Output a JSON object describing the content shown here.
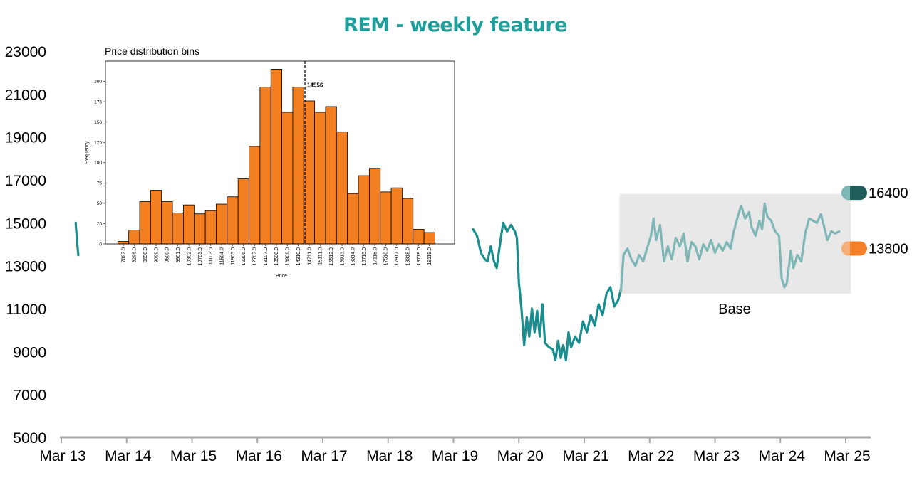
{
  "title": "REM - weekly feature",
  "colors": {
    "title": "#1f9e9a",
    "price_line": "#1a8e8e",
    "base_line": "#7fb6b6",
    "base_box": "#e8e8e8",
    "hist_bar": "#f47f20",
    "badge_high": "#1e5e5a",
    "badge_low": "#f4802a"
  },
  "chart_data": {
    "type": "line",
    "title": "REM - weekly feature",
    "x_ticks": [
      "Mar 13",
      "Mar 14",
      "Mar 15",
      "Mar 16",
      "Mar 17",
      "Mar 18",
      "Mar 19",
      "Mar 20",
      "Mar 21",
      "Mar 22",
      "Mar 23",
      "Mar 24",
      "Mar 25"
    ],
    "y_ticks": [
      5000,
      7000,
      9000,
      11000,
      13000,
      15000,
      17000,
      19000,
      21000,
      23000
    ],
    "ylim": [
      5000,
      23000
    ],
    "xlim": [
      13.0,
      25.0
    ],
    "series": [
      {
        "name": "price-segment-1",
        "points": [
          [
            13.22,
            15000
          ],
          [
            13.24,
            14200
          ],
          [
            13.26,
            13500
          ]
        ]
      },
      {
        "name": "price-main",
        "points": [
          [
            19.3,
            14700
          ],
          [
            19.36,
            14400
          ],
          [
            19.42,
            13600
          ],
          [
            19.48,
            13300
          ],
          [
            19.52,
            13200
          ],
          [
            19.57,
            13900
          ],
          [
            19.62,
            13200
          ],
          [
            19.66,
            12900
          ],
          [
            19.72,
            14200
          ],
          [
            19.76,
            15000
          ],
          [
            19.82,
            14600
          ],
          [
            19.88,
            14900
          ],
          [
            19.94,
            14600
          ],
          [
            19.97,
            14300
          ],
          [
            20.0,
            12200
          ],
          [
            20.04,
            11000
          ],
          [
            20.08,
            9300
          ],
          [
            20.12,
            10600
          ],
          [
            20.16,
            9700
          ],
          [
            20.2,
            11000
          ],
          [
            20.24,
            9900
          ],
          [
            20.28,
            10900
          ],
          [
            20.32,
            9700
          ],
          [
            20.36,
            11200
          ],
          [
            20.4,
            9400
          ],
          [
            20.46,
            9200
          ],
          [
            20.52,
            9100
          ],
          [
            20.56,
            8600
          ],
          [
            20.6,
            9500
          ],
          [
            20.64,
            8700
          ],
          [
            20.68,
            9300
          ],
          [
            20.72,
            8600
          ],
          [
            20.76,
            9900
          ],
          [
            20.8,
            9200
          ],
          [
            20.86,
            9700
          ],
          [
            20.92,
            9400
          ],
          [
            20.98,
            10400
          ],
          [
            21.04,
            9900
          ],
          [
            21.1,
            10700
          ],
          [
            21.16,
            10200
          ],
          [
            21.22,
            11200
          ],
          [
            21.28,
            10700
          ],
          [
            21.34,
            11700
          ],
          [
            21.4,
            12000
          ],
          [
            21.46,
            11100
          ],
          [
            21.52,
            11400
          ],
          [
            21.56,
            11900
          ]
        ]
      },
      {
        "name": "base-line",
        "points": [
          [
            21.56,
            11800
          ],
          [
            21.6,
            13500
          ],
          [
            21.66,
            13800
          ],
          [
            21.72,
            13300
          ],
          [
            21.78,
            13000
          ],
          [
            21.84,
            13500
          ],
          [
            21.9,
            13200
          ],
          [
            21.96,
            13800
          ],
          [
            22.02,
            14400
          ],
          [
            22.06,
            15200
          ],
          [
            22.1,
            14200
          ],
          [
            22.16,
            14900
          ],
          [
            22.22,
            13200
          ],
          [
            22.28,
            13900
          ],
          [
            22.34,
            13300
          ],
          [
            22.4,
            14300
          ],
          [
            22.46,
            13900
          ],
          [
            22.52,
            14500
          ],
          [
            22.58,
            13200
          ],
          [
            22.64,
            14100
          ],
          [
            22.7,
            13900
          ],
          [
            22.76,
            13300
          ],
          [
            22.82,
            14000
          ],
          [
            22.88,
            13700
          ],
          [
            22.94,
            14200
          ],
          [
            23.0,
            13600
          ],
          [
            23.06,
            14000
          ],
          [
            23.12,
            13700
          ],
          [
            23.18,
            14100
          ],
          [
            23.24,
            13800
          ],
          [
            23.28,
            14500
          ],
          [
            23.34,
            15200
          ],
          [
            23.4,
            15800
          ],
          [
            23.46,
            15200
          ],
          [
            23.52,
            15500
          ],
          [
            23.56,
            14800
          ],
          [
            23.62,
            14400
          ],
          [
            23.68,
            15100
          ],
          [
            23.72,
            14700
          ],
          [
            23.76,
            15900
          ],
          [
            23.8,
            15300
          ],
          [
            23.86,
            15100
          ],
          [
            23.92,
            14600
          ],
          [
            23.98,
            14400
          ],
          [
            24.02,
            12400
          ],
          [
            24.06,
            12000
          ],
          [
            24.1,
            12200
          ],
          [
            24.16,
            13700
          ],
          [
            24.2,
            12900
          ],
          [
            24.26,
            13500
          ],
          [
            24.32,
            13200
          ],
          [
            24.38,
            14500
          ],
          [
            24.44,
            15200
          ],
          [
            24.5,
            15100
          ],
          [
            24.56,
            15000
          ],
          [
            24.62,
            15400
          ],
          [
            24.68,
            14700
          ],
          [
            24.72,
            14200
          ],
          [
            24.78,
            14600
          ],
          [
            24.84,
            14500
          ],
          [
            24.9,
            14600
          ]
        ]
      }
    ],
    "base_region": {
      "label": "Base",
      "x_range": [
        21.54,
        25.08
      ],
      "y_range": [
        11700,
        16350
      ]
    },
    "badges": [
      {
        "name": "high",
        "value": 16400
      },
      {
        "name": "low",
        "value": 13800
      }
    ],
    "badge_labels": [
      "16400",
      "13800"
    ],
    "inset_histogram": {
      "type": "bar",
      "title": "Price distribution bins",
      "xlabel": "Price",
      "ylabel": "Frequency",
      "categories": [
        "7897.0",
        "8298.0",
        "8698.0",
        "9099.0",
        "9500.0",
        "9901.0",
        "10302.0",
        "10703.0",
        "11103.0",
        "11504.0",
        "11905.0",
        "12306.0",
        "12707.0",
        "13107.0",
        "13508.0",
        "13909.0",
        "14310.0",
        "14711.0",
        "15111.0",
        "15512.0",
        "15913.0",
        "16314.0",
        "16715.0",
        "17115.0",
        "17516.0",
        "17917.0",
        "18318.0",
        "18719.0",
        "19119.0"
      ],
      "values": [
        3,
        17,
        52,
        66,
        52,
        38,
        48,
        37,
        41,
        49,
        58,
        80,
        120,
        193,
        215,
        162,
        193,
        176,
        162,
        169,
        138,
        62,
        84,
        93,
        64,
        69,
        56,
        18,
        14
      ],
      "y_ticks": [
        0,
        25,
        50,
        75,
        100,
        125,
        150,
        175,
        200
      ],
      "ylim": [
        0,
        225
      ],
      "marker": {
        "value": 14556,
        "label": "14556"
      }
    }
  }
}
